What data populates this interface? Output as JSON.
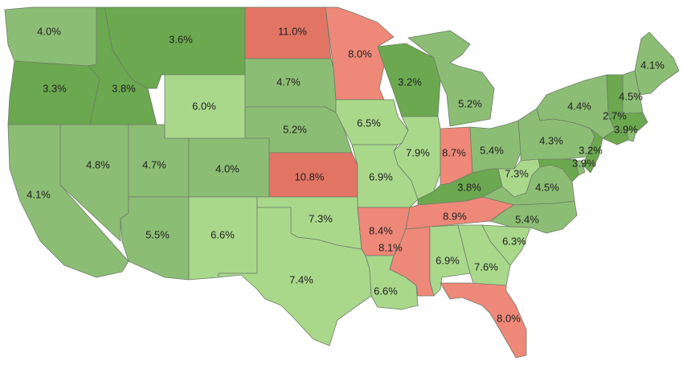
{
  "colors": {
    "low": "#6ba84f",
    "mid_low": "#8cbd74",
    "mid": "#a9d88b",
    "high": "#ee8878",
    "very_high": "#e27464",
    "border": "#6f7d6a",
    "label": "#222222"
  },
  "states": [
    {
      "code": "WA",
      "value": "4.0%",
      "tier": "mid_low"
    },
    {
      "code": "OR",
      "value": "3.3%",
      "tier": "low"
    },
    {
      "code": "ID",
      "value": "3.8%",
      "tier": "low"
    },
    {
      "code": "MT",
      "value": "3.6%",
      "tier": "low"
    },
    {
      "code": "ND",
      "value": "11.0%",
      "tier": "very_high"
    },
    {
      "code": "MN",
      "value": "8.0%",
      "tier": "high"
    },
    {
      "code": "WI",
      "value": "3.2%",
      "tier": "low"
    },
    {
      "code": "MI",
      "value": "5.2%",
      "tier": "mid_low"
    },
    {
      "code": "ME",
      "value": "4.1%",
      "tier": "mid_low"
    },
    {
      "code": "NH",
      "value": "4.5%",
      "tier": "mid_low"
    },
    {
      "code": "VT",
      "value": "2.7%",
      "tier": "low"
    },
    {
      "code": "MA",
      "value": "3.9%",
      "tier": "low"
    },
    {
      "code": "NY",
      "value": "4.4%",
      "tier": "mid_low"
    },
    {
      "code": "CA",
      "value": "4.1%",
      "tier": "mid_low"
    },
    {
      "code": "NV",
      "value": "4.8%",
      "tier": "mid_low"
    },
    {
      "code": "UT",
      "value": "4.7%",
      "tier": "mid_low"
    },
    {
      "code": "WY",
      "value": "6.0%",
      "tier": "mid"
    },
    {
      "code": "SD",
      "value": "4.7%",
      "tier": "mid_low"
    },
    {
      "code": "NE",
      "value": "5.2%",
      "tier": "mid_low"
    },
    {
      "code": "IA",
      "value": "6.5%",
      "tier": "mid"
    },
    {
      "code": "IL",
      "value": "7.9%",
      "tier": "mid"
    },
    {
      "code": "IN",
      "value": "8.7%",
      "tier": "high"
    },
    {
      "code": "OH",
      "value": "5.4%",
      "tier": "mid_low"
    },
    {
      "code": "PA",
      "value": "4.3%",
      "tier": "mid_low"
    },
    {
      "code": "NJ",
      "value": "3.2%",
      "tier": "low"
    },
    {
      "code": "CO",
      "value": "4.0%",
      "tier": "mid_low"
    },
    {
      "code": "KS",
      "value": "10.8%",
      "tier": "very_high"
    },
    {
      "code": "MO",
      "value": "6.9%",
      "tier": "mid"
    },
    {
      "code": "KY",
      "value": "3.8%",
      "tier": "low"
    },
    {
      "code": "WV",
      "value": "7.3%",
      "tier": "mid"
    },
    {
      "code": "MD",
      "value": "3.9%",
      "tier": "low"
    },
    {
      "code": "VA",
      "value": "4.5%",
      "tier": "mid_low"
    },
    {
      "code": "AZ",
      "value": "5.5%",
      "tier": "mid_low"
    },
    {
      "code": "NM",
      "value": "6.6%",
      "tier": "mid"
    },
    {
      "code": "OK",
      "value": "7.3%",
      "tier": "mid"
    },
    {
      "code": "AR",
      "value": "8.4%",
      "tier": "high"
    },
    {
      "code": "TN",
      "value": "8.9%",
      "tier": "high"
    },
    {
      "code": "NC",
      "value": "5.4%",
      "tier": "mid_low"
    },
    {
      "code": "SC",
      "value": "6.3%",
      "tier": "mid"
    },
    {
      "code": "MS",
      "value": "8.1%",
      "tier": "high"
    },
    {
      "code": "AL",
      "value": "6.9%",
      "tier": "mid"
    },
    {
      "code": "GA",
      "value": "7.6%",
      "tier": "mid"
    },
    {
      "code": "TX",
      "value": "7.4%",
      "tier": "mid"
    },
    {
      "code": "LA",
      "value": "6.6%",
      "tier": "mid"
    },
    {
      "code": "FL",
      "value": "8.0%",
      "tier": "high"
    },
    {
      "code": "CT",
      "value": "",
      "tier": "low"
    },
    {
      "code": "RI",
      "value": "",
      "tier": "mid_low"
    },
    {
      "code": "DE",
      "value": "",
      "tier": "mid_low"
    }
  ]
}
